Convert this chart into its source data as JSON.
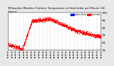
{
  "title": "Milwaukee Weather Outdoor Temperature vs Heat Index per Minute (24 Hours)",
  "bg_color": "#e8e8e8",
  "plot_bg_color": "#ffffff",
  "dot_color": "#ff0000",
  "dot_size": 0.5,
  "legend_label1": "Outdoor Temp",
  "legend_label2": "Heat Index",
  "legend_color1": "#0000ff",
  "legend_color2": "#ff0000",
  "ylim": [
    50,
    100
  ],
  "xlim": [
    0,
    1440
  ],
  "ylabel_fontsize": 3.0,
  "xlabel_fontsize": 2.0,
  "title_fontsize": 2.8,
  "noise_std": 1.2
}
